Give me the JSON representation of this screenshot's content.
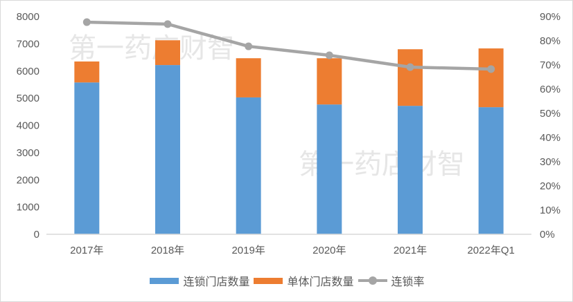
{
  "chart_data": {
    "type": "bar",
    "subtype": "stacked-bar-with-line-secondary-axis",
    "title": "",
    "categories": [
      "2017年",
      "2018年",
      "2019年",
      "2020年",
      "2021年",
      "2022年Q1"
    ],
    "series": [
      {
        "name": "连锁门店数量",
        "type": "bar",
        "stack": "stores",
        "axis": "left",
        "color": "#5b9bd5",
        "values": [
          5580,
          6220,
          5030,
          4770,
          4720,
          4670
        ]
      },
      {
        "name": "单体门店数量",
        "type": "bar",
        "stack": "stores",
        "axis": "left",
        "color": "#ed7d31",
        "values": [
          770,
          910,
          1440,
          1700,
          2080,
          2160
        ]
      },
      {
        "name": "连锁率",
        "type": "line",
        "axis": "right",
        "color": "#a5a5a5",
        "marker": "circle",
        "values": [
          0.877,
          0.869,
          0.777,
          0.74,
          0.691,
          0.683
        ]
      }
    ],
    "left_axis": {
      "min": 0,
      "max": 8000,
      "step": 1000,
      "ticks": [
        "0",
        "1000",
        "2000",
        "3000",
        "4000",
        "5000",
        "6000",
        "7000",
        "8000"
      ]
    },
    "right_axis": {
      "min": 0,
      "max": 0.9,
      "step": 0.1,
      "ticks": [
        "0%",
        "10%",
        "20%",
        "30%",
        "40%",
        "50%",
        "60%",
        "70%",
        "80%",
        "90%"
      ]
    },
    "xlabel": "",
    "ylabel": "",
    "grid": false,
    "legend_position": "bottom",
    "watermark": "第一药店财智"
  },
  "legend": {
    "items": [
      {
        "label": "连锁门店数量",
        "color": "#5b9bd5"
      },
      {
        "label": "单体门店数量",
        "color": "#ed7d31"
      },
      {
        "label": "连锁率",
        "color": "#a5a5a5"
      }
    ]
  },
  "watermark": {
    "text": "第一药店财智"
  }
}
